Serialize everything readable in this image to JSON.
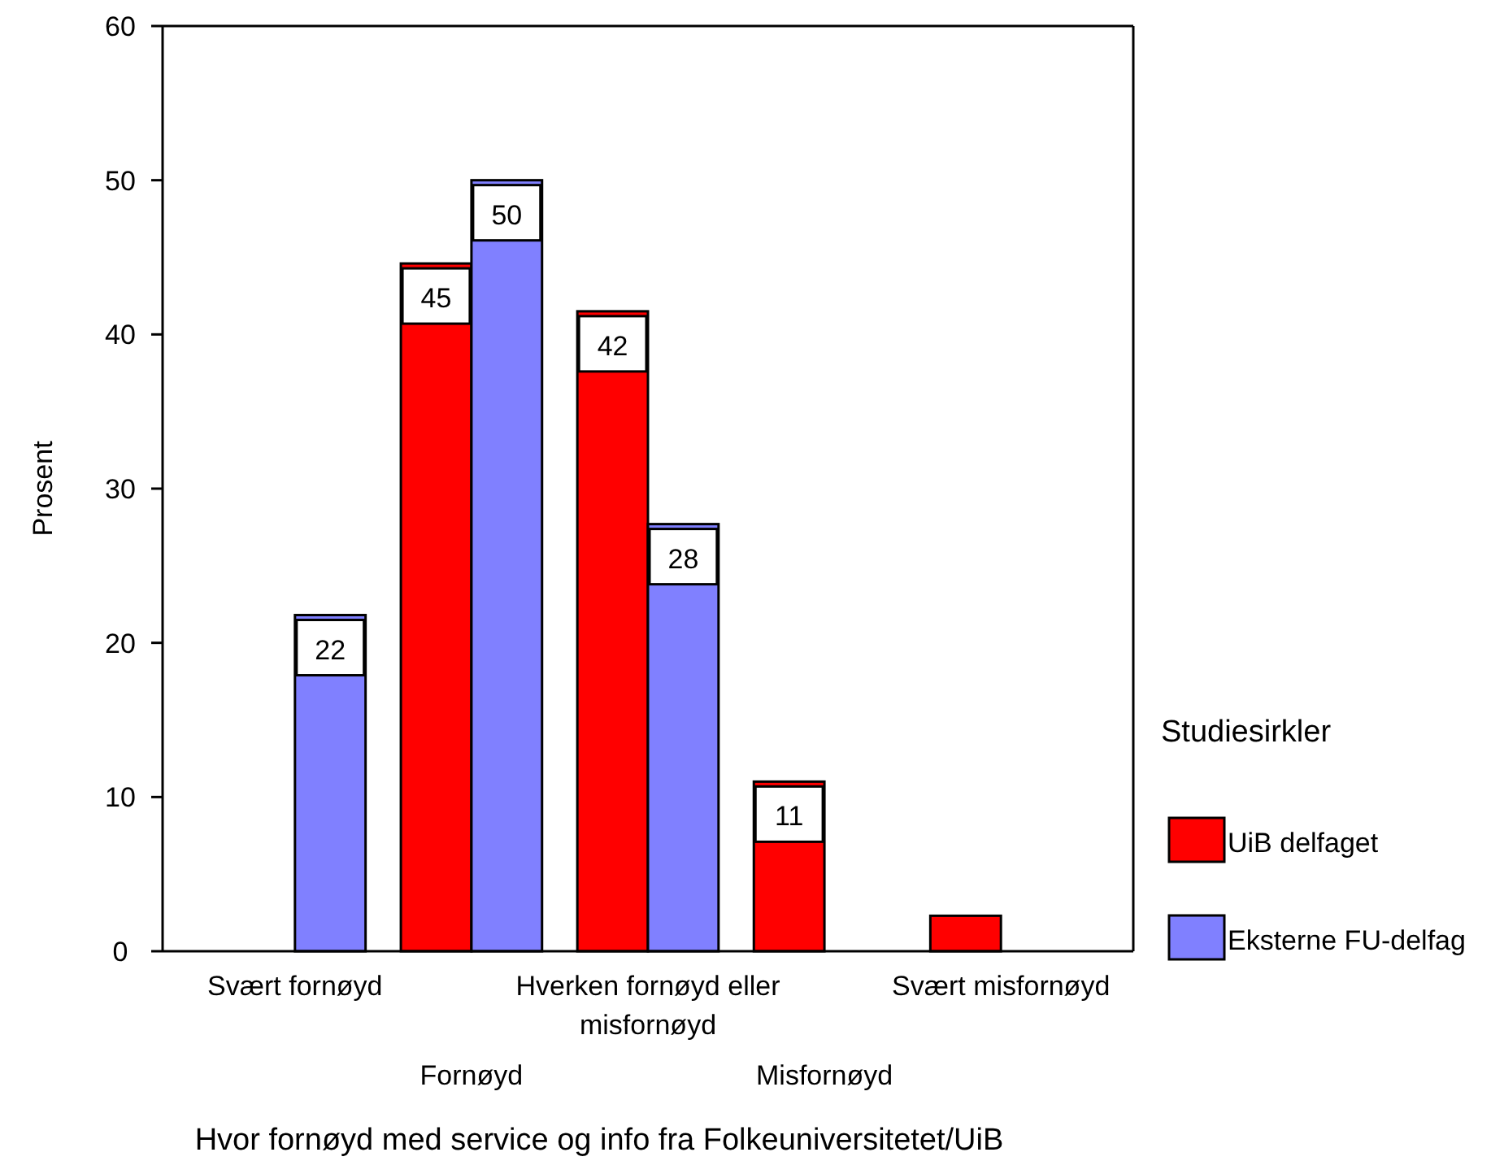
{
  "chart_data": {
    "type": "bar",
    "xlabel": "Hvor fornøyd med service og info fra Folkeuniversitetet/UiB",
    "ylabel": "Prosent",
    "legend_title": "Studiesirkler",
    "legend": "right",
    "categories": [
      "Svært fornøyd",
      "Fornøyd",
      "Hverken fornøyd eller misfornøyd",
      "Misfornøyd",
      "Svært misfornøyd"
    ],
    "series": [
      {
        "name": "UiB delfaget",
        "color": "#ff0000",
        "values": [
          0,
          44.6,
          41.5,
          11,
          2.3
        ],
        "value_labels": [
          null,
          "45",
          "42",
          "11",
          null
        ]
      },
      {
        "name": "Eksterne FU-delfag",
        "color": "#8080ff",
        "values": [
          21.8,
          50,
          27.7,
          0,
          0
        ],
        "value_labels": [
          "22",
          "50",
          "28",
          null,
          null
        ]
      }
    ],
    "ylim": [
      0,
      60
    ],
    "yticks": [
      0,
      10,
      20,
      30,
      40,
      50,
      60
    ]
  }
}
